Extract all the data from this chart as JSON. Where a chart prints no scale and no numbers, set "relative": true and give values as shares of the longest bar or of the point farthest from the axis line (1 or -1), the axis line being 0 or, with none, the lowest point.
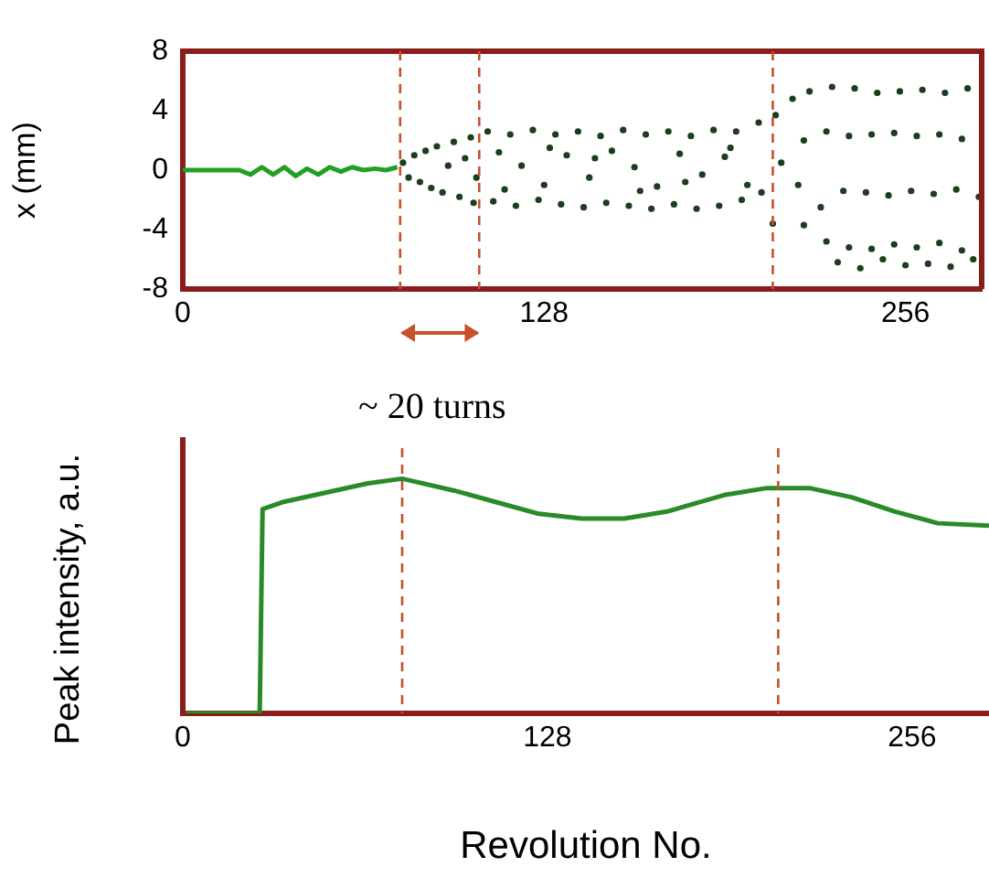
{
  "chart_data": [
    {
      "type": "scatter",
      "ylabel": "x (mm)",
      "xlim": [
        0,
        283
      ],
      "xticks": [
        0,
        128,
        256
      ],
      "ylim": [
        -8,
        8
      ],
      "yticks": [
        -8,
        -4,
        0,
        4,
        8
      ],
      "marker": "circle",
      "legend": false,
      "grid": false,
      "series": [
        {
          "type": "line",
          "marker": "none",
          "color": "#22a022",
          "x": [
            0,
            20,
            24,
            28,
            32,
            36,
            40,
            44,
            48,
            52,
            56,
            60,
            64,
            68,
            72,
            76
          ],
          "values": [
            0,
            0,
            -0.3,
            0.2,
            -0.3,
            0.2,
            -0.4,
            0.1,
            -0.3,
            0.2,
            -0.1,
            0.2,
            0,
            0.1,
            0,
            0.2
          ]
        },
        {
          "color": "#1e3d1e",
          "x": [
            78,
            80,
            82,
            84,
            86,
            88,
            90,
            92,
            94,
            96,
            98,
            100,
            102,
            103,
            104,
            108,
            116,
            124,
            132,
            140,
            148,
            156,
            164,
            172,
            180,
            188,
            196,
            204,
            110,
            118,
            126,
            134,
            142,
            150,
            158,
            166,
            174,
            182,
            190,
            198,
            205,
            112,
            120,
            128,
            136,
            144,
            152,
            160,
            168,
            176,
            184,
            192,
            200,
            114,
            130,
            146,
            162,
            178,
            194,
            209,
            210,
            212,
            216,
            222,
            230,
            238,
            246,
            254,
            262,
            270,
            278,
            220,
            228,
            236,
            244,
            252,
            260,
            268,
            276,
            218,
            226,
            234,
            242,
            250,
            258,
            266,
            274,
            282,
            220,
            228,
            236,
            244,
            252,
            260,
            268,
            276,
            232,
            240,
            248,
            256,
            264,
            272,
            280
          ],
          "values": [
            0.5,
            -0.5,
            1,
            -0.8,
            1.3,
            -1.2,
            1.6,
            -1.5,
            0.3,
            1.9,
            -1.8,
            0.8,
            2.2,
            -2.2,
            -0.5,
            2.6,
            2.4,
            2.7,
            2.4,
            2.6,
            2.3,
            2.7,
            2.4,
            2.6,
            2.3,
            2.7,
            2.6,
            3.2,
            -2.1,
            -2.4,
            -2,
            -2.3,
            -2.5,
            -2.2,
            -2.4,
            -2.6,
            -2.3,
            -2.6,
            -2.4,
            -2,
            -1.5,
            1.2,
            0.3,
            -1,
            1,
            -0.5,
            1.3,
            0.2,
            -1.1,
            1.1,
            -0.3,
            0.9,
            -1,
            -1.3,
            1.5,
            0.8,
            -1.4,
            -0.8,
            1.5,
            -3.6,
            3.7,
            0.5,
            4.8,
            5.3,
            5.6,
            5.5,
            5.2,
            5.3,
            5.4,
            5.2,
            5.5,
            2,
            2.6,
            2.3,
            2.4,
            2.5,
            2.3,
            2.4,
            2.1,
            -1,
            -2.5,
            -1.4,
            -1.5,
            -1.7,
            -1.4,
            -1.6,
            -1.3,
            -1.8,
            -3.7,
            -4.8,
            -5.2,
            -5.3,
            -5,
            -5.2,
            -4.9,
            -5.4,
            -6.2,
            -6.6,
            -6,
            -6.4,
            -6.3,
            -6.5,
            -6
          ]
        }
      ],
      "ref_lines": [
        {
          "axis": "x",
          "value": 77,
          "color": "#c8502a",
          "line_style": "dashed"
        },
        {
          "axis": "x",
          "value": 105,
          "color": "#c8502a",
          "line_style": "dashed"
        },
        {
          "axis": "x",
          "value": 209,
          "color": "#c8502a",
          "line_style": "dashed"
        }
      ]
    },
    {
      "type": "line",
      "xlabel": "Revolution No.",
      "ylabel": "Peak intensity, a.u.",
      "relative": true,
      "tick_labels": "x",
      "legend": false,
      "grid": false,
      "color": "#2a8a2a",
      "xlim": [
        0,
        283
      ],
      "xticks": [
        0,
        128,
        256
      ],
      "x": [
        0,
        27,
        28,
        35,
        50,
        65,
        77,
        95,
        110,
        125,
        140,
        155,
        170,
        190,
        205,
        220,
        235,
        250,
        265,
        283
      ],
      "values": [
        0,
        0,
        0.87,
        0.9,
        0.94,
        0.98,
        1,
        0.95,
        0.9,
        0.85,
        0.83,
        0.83,
        0.86,
        0.93,
        0.96,
        0.96,
        0.92,
        0.86,
        0.81,
        0.8
      ],
      "ref_lines": [
        {
          "axis": "x",
          "value": 77,
          "color": "#c8502a",
          "line_style": "dashed"
        },
        {
          "axis": "x",
          "value": 209,
          "color": "#c8502a",
          "line_style": "dashed"
        }
      ],
      "annotations": [
        "~ 20 turns"
      ]
    }
  ]
}
